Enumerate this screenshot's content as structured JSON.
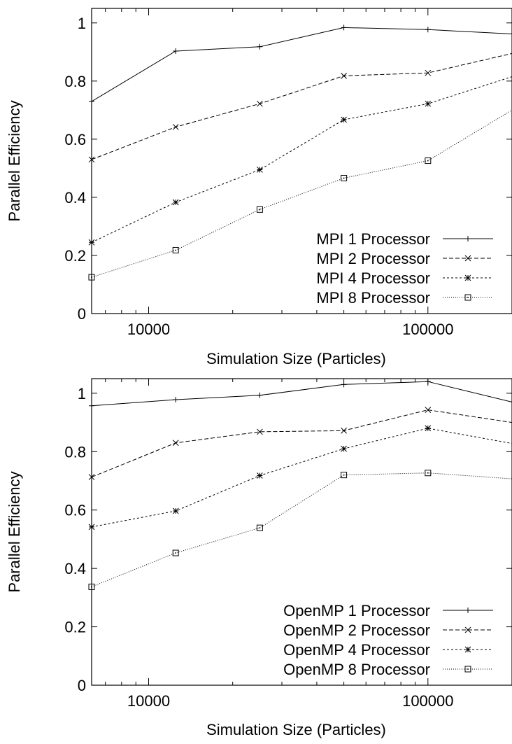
{
  "chart_data": [
    {
      "type": "line",
      "xscale": "log",
      "xlim": [
        6250,
        200000
      ],
      "ylim": [
        0,
        1.05
      ],
      "xticks": [
        {
          "value": 10000,
          "label": "10000"
        },
        {
          "value": 100000,
          "label": "100000"
        }
      ],
      "yticks": [
        {
          "value": 0,
          "label": "0"
        },
        {
          "value": 0.2,
          "label": "0.2"
        },
        {
          "value": 0.4,
          "label": "0.4"
        },
        {
          "value": 0.6,
          "label": "0.6"
        },
        {
          "value": 0.8,
          "label": "0.8"
        },
        {
          "value": 1,
          "label": "1"
        }
      ],
      "xlabel": "Simulation Size (Particles)",
      "ylabel": "Parallel Efficiency",
      "legend_position": "bottom-right",
      "x": [
        6250,
        12500,
        25000,
        50000,
        100000,
        200000
      ],
      "series": [
        {
          "name": "MPI 1 Processor",
          "marker": "plus",
          "dash": "solid",
          "values": [
            0.73,
            0.903,
            0.918,
            0.984,
            0.977,
            0.962
          ]
        },
        {
          "name": "MPI 2 Processor",
          "marker": "cross",
          "dash": "dashed",
          "values": [
            0.53,
            0.642,
            0.722,
            0.818,
            0.828,
            0.895
          ]
        },
        {
          "name": "MPI 4 Processor",
          "marker": "star",
          "dash": "short-dashed",
          "values": [
            0.245,
            0.383,
            0.495,
            0.667,
            0.722,
            0.815
          ]
        },
        {
          "name": "MPI 8 Processor",
          "marker": "square",
          "dash": "dotted",
          "values": [
            0.125,
            0.218,
            0.358,
            0.466,
            0.526,
            0.7
          ]
        }
      ]
    },
    {
      "type": "line",
      "xscale": "log",
      "xlim": [
        6250,
        200000
      ],
      "ylim": [
        0,
        1.05
      ],
      "xticks": [
        {
          "value": 10000,
          "label": "10000"
        },
        {
          "value": 100000,
          "label": "100000"
        }
      ],
      "yticks": [
        {
          "value": 0,
          "label": "0"
        },
        {
          "value": 0.2,
          "label": "0.2"
        },
        {
          "value": 0.4,
          "label": "0.4"
        },
        {
          "value": 0.6,
          "label": "0.6"
        },
        {
          "value": 0.8,
          "label": "0.8"
        },
        {
          "value": 1,
          "label": "1"
        }
      ],
      "xlabel": "Simulation Size (Particles)",
      "ylabel": "Parallel Efficiency",
      "legend_position": "bottom-right",
      "x": [
        6250,
        12500,
        25000,
        50000,
        100000,
        200000
      ],
      "series": [
        {
          "name": "OpenMP 1 Processor",
          "marker": "plus",
          "dash": "solid",
          "values": [
            0.957,
            0.978,
            0.993,
            1.03,
            1.04,
            0.97
          ]
        },
        {
          "name": "OpenMP 2 Processor",
          "marker": "cross",
          "dash": "dashed",
          "values": [
            0.713,
            0.83,
            0.868,
            0.872,
            0.943,
            0.9
          ]
        },
        {
          "name": "OpenMP 4 Processor",
          "marker": "star",
          "dash": "short-dashed",
          "values": [
            0.542,
            0.597,
            0.718,
            0.81,
            0.88,
            0.828
          ]
        },
        {
          "name": "OpenMP 8 Processor",
          "marker": "square",
          "dash": "dotted",
          "values": [
            0.337,
            0.453,
            0.539,
            0.72,
            0.727,
            0.707
          ]
        }
      ]
    }
  ]
}
